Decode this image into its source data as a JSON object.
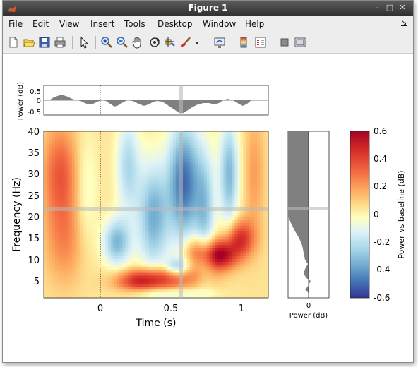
{
  "window": {
    "title": "Figure 1"
  },
  "menu": [
    "File",
    "Edit",
    "View",
    "Insert",
    "Tools",
    "Desktop",
    "Window",
    "Help"
  ],
  "toolbar_icons": [
    "new-figure-icon",
    "open-file-icon",
    "save-icon",
    "print-icon",
    "pointer-icon",
    "zoom-in-icon",
    "zoom-out-icon",
    "pan-icon",
    "rotate-3d-icon",
    "data-cursor-icon",
    "brush-icon",
    "brush-dropdown-icon",
    "link-plot-icon",
    "colorbar-icon",
    "legend-icon",
    "hide-plot-tools-icon",
    "show-plot-tools-icon"
  ],
  "top_panel": {
    "ylabel": "Power (dB)",
    "yticks": [
      "0.5",
      "0",
      "-0.5"
    ]
  },
  "main": {
    "ylabel": "Frequency (Hz)",
    "xlabel": "Time (s)",
    "yticks": [
      "40",
      "35",
      "30",
      "25",
      "20",
      "15",
      "10",
      "5"
    ],
    "xticks": [
      "0",
      "0.5",
      "1"
    ]
  },
  "side_panel": {
    "xlabel": "Power (dB)",
    "xtick": "0"
  },
  "colorbar": {
    "label": "Power vs baseline (dB)",
    "ticks": [
      "0.6",
      "0.4",
      "0.2",
      "0",
      "-0.2",
      "-0.4",
      "-0.6"
    ]
  },
  "chart_data": {
    "type": "heatmap",
    "xlabel": "Time (s)",
    "ylabel": "Frequency (Hz)",
    "xlim": [
      -0.4,
      1.2
    ],
    "ylim": [
      1,
      40
    ],
    "clim": [
      -0.6,
      0.6
    ],
    "colorbar_label": "Power vs baseline (dB)",
    "markers": {
      "time_cursor": 0.58,
      "frequency_cursor": 21.5,
      "event_line": 0
    },
    "blobs": [
      {
        "t": -0.28,
        "f": 30,
        "value": 0.3,
        "st": 0.09,
        "sf": 8
      },
      {
        "t": -0.25,
        "f": 14,
        "value": 0.18,
        "st": 0.1,
        "sf": 7
      },
      {
        "t": -0.1,
        "f": 26,
        "value": -0.12,
        "st": 0.06,
        "sf": 10
      },
      {
        "t": 0.3,
        "f": 5,
        "value": 0.45,
        "st": 0.13,
        "sf": 1.8
      },
      {
        "t": 0.55,
        "f": 6,
        "value": 0.3,
        "st": 0.15,
        "sf": 2.0
      },
      {
        "t": 0.85,
        "f": 11,
        "value": 0.58,
        "st": 0.09,
        "sf": 2.5
      },
      {
        "t": 1.0,
        "f": 15,
        "value": 0.4,
        "st": 0.07,
        "sf": 3.0
      },
      {
        "t": 0.68,
        "f": 12,
        "value": 0.25,
        "st": 0.06,
        "sf": 2.5
      },
      {
        "t": 0.6,
        "f": 28,
        "value": -0.55,
        "st": 0.08,
        "sf": 10
      },
      {
        "t": 0.38,
        "f": 20,
        "value": -0.4,
        "st": 0.08,
        "sf": 9
      },
      {
        "t": 0.12,
        "f": 14,
        "value": -0.38,
        "st": 0.07,
        "sf": 4
      },
      {
        "t": 0.55,
        "f": 8,
        "value": -0.35,
        "st": 0.06,
        "sf": 1.5
      },
      {
        "t": 0.92,
        "f": 30,
        "value": -0.38,
        "st": 0.05,
        "sf": 9
      },
      {
        "t": 0.75,
        "f": 22,
        "value": -0.3,
        "st": 0.05,
        "sf": 10
      },
      {
        "t": 0.2,
        "f": 32,
        "value": -0.28,
        "st": 0.06,
        "sf": 8
      },
      {
        "t": 0.5,
        "f": 2,
        "value": -0.15,
        "st": 0.2,
        "sf": 0.8
      },
      {
        "t": 1.1,
        "f": 30,
        "value": 0.15,
        "st": 0.05,
        "sf": 10
      }
    ]
  }
}
